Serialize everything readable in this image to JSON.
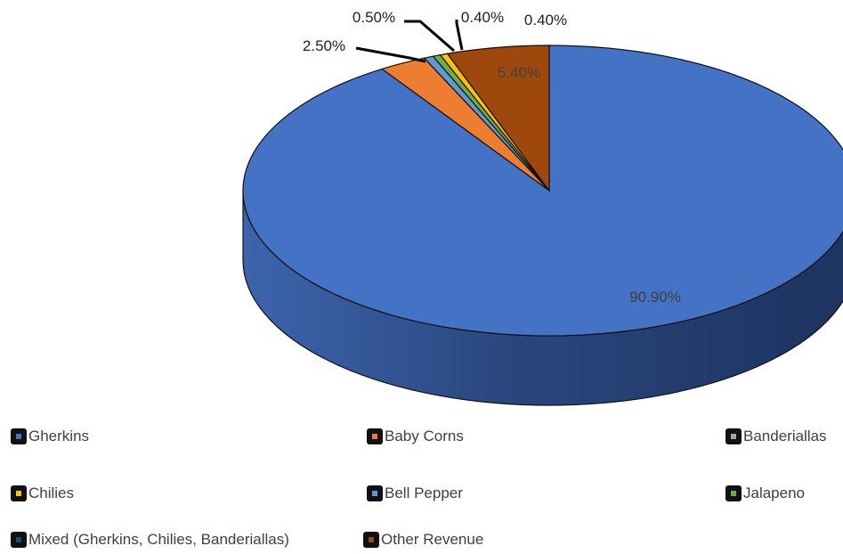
{
  "chart_data": {
    "type": "pie",
    "three_d": true,
    "legend_position": "bottom",
    "colors": {
      "Gherkins": "#4472c4",
      "Baby Corns": "#ed7d31",
      "Banderiallas": "#a5a5a5",
      "Chilies": "#ffc000",
      "Bell Pepper": "#5b9bd5",
      "Jalapeno": "#70ad47",
      "Mixed (Gherkins, Chilies, Banderiallas)": "#264478",
      "Other Revenue": "#9e480e"
    },
    "slices": [
      {
        "label": "Gherkins",
        "value": 90.9,
        "display": "90.90%"
      },
      {
        "label": "Baby Corns",
        "value": 2.5,
        "display": "2.50%"
      },
      {
        "label": "Bell Pepper",
        "value": 0.5,
        "display": "0.50%"
      },
      {
        "label": "Jalapeno",
        "value": 0.4,
        "display": "0.40%"
      },
      {
        "label": "Chilies",
        "value": 0.4,
        "display": "0.40%"
      },
      {
        "label": "Other Revenue",
        "value": 5.4,
        "display": "5.40%"
      }
    ],
    "legend": [
      "Gherkins",
      "Baby Corns",
      "Banderiallas",
      "Chilies",
      "Bell Pepper",
      "Jalapeno",
      "Mixed (Gherkins, Chilies, Banderiallas)",
      "Other Revenue"
    ]
  }
}
